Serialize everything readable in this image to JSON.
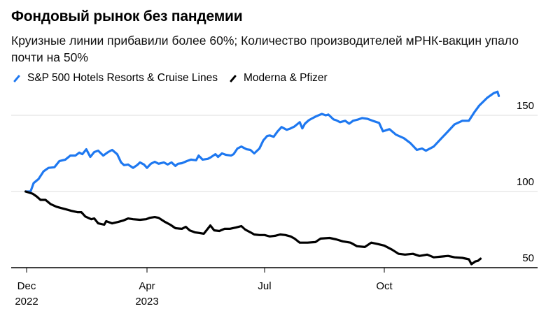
{
  "chart_data": {
    "type": "line",
    "title": "Фондовый рынок без пандемии",
    "subtitle": "Круизные линии прибавили более 60%; Количество производителей мРНК-вакцин упало почти на 50%",
    "xlabel": "",
    "ylabel": "",
    "ylim": [
      50,
      165
    ],
    "xlim": [
      "2022-11-28",
      "2024-01-12"
    ],
    "grid": true,
    "legend_position": "top-left",
    "y_ticks": [
      50,
      100,
      150
    ],
    "y_tick_labels": [
      "50",
      "100",
      "150"
    ],
    "x_ticks": [
      {
        "date": "2022-12-01",
        "label_line1": "Dec",
        "label_line2": "2022"
      },
      {
        "date": "2023-04-01",
        "label_line1": "Apr",
        "label_line2": "2023"
      },
      {
        "date": "2023-07-01",
        "label_line1": "Jul",
        "label_line2": ""
      },
      {
        "date": "2023-10-01",
        "label_line1": "Oct",
        "label_line2": ""
      }
    ],
    "series": [
      {
        "name": "S&P 500 Hotels Resorts & Cruise Lines",
        "color": "#1e78f0",
        "points": [
          [
            "2022-11-30",
            100.0
          ],
          [
            "2022-12-05",
            100.0
          ],
          [
            "2022-12-08",
            105.5
          ],
          [
            "2022-12-13",
            108.2
          ],
          [
            "2022-12-18",
            113.2
          ],
          [
            "2022-12-23",
            115.5
          ],
          [
            "2022-12-29",
            115.9
          ],
          [
            "2023-01-03",
            120.0
          ],
          [
            "2023-01-09",
            120.9
          ],
          [
            "2023-01-14",
            123.6
          ],
          [
            "2023-01-19",
            123.6
          ],
          [
            "2023-01-23",
            125.5
          ],
          [
            "2023-01-26",
            124.5
          ],
          [
            "2023-01-30",
            127.7
          ],
          [
            "2023-02-03",
            122.7
          ],
          [
            "2023-02-07",
            125.9
          ],
          [
            "2023-02-11",
            126.8
          ],
          [
            "2023-02-16",
            123.6
          ],
          [
            "2023-02-21",
            125.9
          ],
          [
            "2023-02-25",
            127.3
          ],
          [
            "2023-03-02",
            124.5
          ],
          [
            "2023-03-06",
            119.1
          ],
          [
            "2023-03-09",
            117.3
          ],
          [
            "2023-03-13",
            117.7
          ],
          [
            "2023-03-18",
            115.5
          ],
          [
            "2023-03-22",
            117.3
          ],
          [
            "2023-03-25",
            119.1
          ],
          [
            "2023-03-29",
            117.7
          ],
          [
            "2023-04-01",
            115.5
          ],
          [
            "2023-04-04",
            118.2
          ],
          [
            "2023-04-07",
            119.5
          ],
          [
            "2023-04-10",
            118.2
          ],
          [
            "2023-04-14",
            119.1
          ],
          [
            "2023-04-17",
            117.7
          ],
          [
            "2023-04-20",
            119.1
          ],
          [
            "2023-04-23",
            116.8
          ],
          [
            "2023-04-25",
            118.2
          ],
          [
            "2023-04-28",
            118.6
          ],
          [
            "2023-05-02",
            120.0
          ],
          [
            "2023-05-05",
            120.9
          ],
          [
            "2023-05-09",
            120.5
          ],
          [
            "2023-05-11",
            123.6
          ],
          [
            "2023-05-14",
            120.9
          ],
          [
            "2023-05-18",
            121.4
          ],
          [
            "2023-05-20",
            122.3
          ],
          [
            "2023-05-24",
            124.5
          ],
          [
            "2023-05-26",
            122.7
          ],
          [
            "2023-05-29",
            125.0
          ],
          [
            "2023-06-01",
            124.1
          ],
          [
            "2023-06-05",
            123.6
          ],
          [
            "2023-06-07",
            124.5
          ],
          [
            "2023-06-10",
            128.2
          ],
          [
            "2023-06-13",
            129.5
          ],
          [
            "2023-06-17",
            127.7
          ],
          [
            "2023-06-20",
            127.3
          ],
          [
            "2023-06-23",
            125.0
          ],
          [
            "2023-06-27",
            128.2
          ],
          [
            "2023-06-30",
            133.6
          ],
          [
            "2023-07-03",
            136.4
          ],
          [
            "2023-07-05",
            136.8
          ],
          [
            "2023-07-08",
            135.9
          ],
          [
            "2023-07-11",
            139.5
          ],
          [
            "2023-07-14",
            142.3
          ],
          [
            "2023-07-18",
            140.5
          ],
          [
            "2023-07-21",
            141.4
          ],
          [
            "2023-07-24",
            142.7
          ],
          [
            "2023-07-28",
            145.5
          ],
          [
            "2023-07-30",
            141.4
          ],
          [
            "2023-08-01",
            144.5
          ],
          [
            "2023-08-04",
            146.8
          ],
          [
            "2023-08-07",
            148.2
          ],
          [
            "2023-08-10",
            149.5
          ],
          [
            "2023-08-14",
            150.9
          ],
          [
            "2023-08-17",
            150.0
          ],
          [
            "2023-08-19",
            150.5
          ],
          [
            "2023-08-23",
            147.3
          ],
          [
            "2023-08-25",
            146.8
          ],
          [
            "2023-08-28",
            145.5
          ],
          [
            "2023-09-01",
            146.4
          ],
          [
            "2023-09-04",
            144.5
          ],
          [
            "2023-09-07",
            146.4
          ],
          [
            "2023-09-11",
            147.3
          ],
          [
            "2023-09-14",
            148.2
          ],
          [
            "2023-09-18",
            147.7
          ],
          [
            "2023-09-22",
            146.4
          ],
          [
            "2023-09-27",
            145.0
          ],
          [
            "2023-09-30",
            139.5
          ],
          [
            "2023-10-05",
            140.9
          ],
          [
            "2023-10-10",
            137.3
          ],
          [
            "2023-10-16",
            135.0
          ],
          [
            "2023-10-21",
            131.8
          ],
          [
            "2023-10-26",
            127.3
          ],
          [
            "2023-10-30",
            128.2
          ],
          [
            "2023-11-02",
            126.8
          ],
          [
            "2023-11-08",
            129.5
          ],
          [
            "2023-11-13",
            134.1
          ],
          [
            "2023-11-19",
            139.5
          ],
          [
            "2023-11-24",
            144.1
          ],
          [
            "2023-11-30",
            146.4
          ],
          [
            "2023-12-05",
            146.4
          ],
          [
            "2023-12-09",
            151.8
          ],
          [
            "2023-12-13",
            156.4
          ],
          [
            "2023-12-19",
            161.4
          ],
          [
            "2023-12-24",
            164.5
          ],
          [
            "2023-12-27",
            165.5
          ],
          [
            "2023-12-28",
            162.7
          ]
        ]
      },
      {
        "name": "Moderna & Pfizer",
        "color": "#000000",
        "points": [
          [
            "2022-11-30",
            100.0
          ],
          [
            "2022-12-07",
            98.6
          ],
          [
            "2022-12-11",
            96.8
          ],
          [
            "2022-12-15",
            94.5
          ],
          [
            "2022-12-20",
            94.5
          ],
          [
            "2022-12-25",
            91.8
          ],
          [
            "2022-12-31",
            90.0
          ],
          [
            "2023-01-05",
            89.1
          ],
          [
            "2023-01-10",
            88.2
          ],
          [
            "2023-01-15",
            87.3
          ],
          [
            "2023-01-21",
            86.4
          ],
          [
            "2023-01-25",
            86.4
          ],
          [
            "2023-01-29",
            83.6
          ],
          [
            "2023-02-04",
            81.8
          ],
          [
            "2023-02-07",
            82.3
          ],
          [
            "2023-02-11",
            79.1
          ],
          [
            "2023-02-17",
            78.2
          ],
          [
            "2023-02-19",
            80.5
          ],
          [
            "2023-02-25",
            79.1
          ],
          [
            "2023-03-03",
            80.0
          ],
          [
            "2023-03-08",
            80.9
          ],
          [
            "2023-03-13",
            82.3
          ],
          [
            "2023-03-18",
            81.8
          ],
          [
            "2023-03-25",
            81.4
          ],
          [
            "2023-03-31",
            81.8
          ],
          [
            "2023-04-03",
            82.7
          ],
          [
            "2023-04-07",
            83.2
          ],
          [
            "2023-04-10",
            82.7
          ],
          [
            "2023-04-15",
            80.0
          ],
          [
            "2023-04-19",
            78.2
          ],
          [
            "2023-04-23",
            75.9
          ],
          [
            "2023-04-28",
            75.5
          ],
          [
            "2023-05-01",
            76.8
          ],
          [
            "2023-05-04",
            74.5
          ],
          [
            "2023-05-08",
            73.2
          ],
          [
            "2023-05-12",
            72.7
          ],
          [
            "2023-05-15",
            72.3
          ],
          [
            "2023-05-20",
            77.7
          ],
          [
            "2023-05-23",
            74.5
          ],
          [
            "2023-05-27",
            74.1
          ],
          [
            "2023-05-31",
            75.5
          ],
          [
            "2023-06-04",
            75.5
          ],
          [
            "2023-06-09",
            76.4
          ],
          [
            "2023-06-13",
            77.3
          ],
          [
            "2023-06-16",
            75.0
          ],
          [
            "2023-06-20",
            73.2
          ],
          [
            "2023-06-23",
            71.8
          ],
          [
            "2023-06-27",
            71.4
          ],
          [
            "2023-07-01",
            71.4
          ],
          [
            "2023-07-05",
            70.5
          ],
          [
            "2023-07-09",
            70.9
          ],
          [
            "2023-07-13",
            71.8
          ],
          [
            "2023-07-17",
            71.4
          ],
          [
            "2023-07-21",
            70.5
          ],
          [
            "2023-07-24",
            69.1
          ],
          [
            "2023-07-28",
            66.4
          ],
          [
            "2023-08-03",
            66.4
          ],
          [
            "2023-08-09",
            66.8
          ],
          [
            "2023-08-13",
            69.1
          ],
          [
            "2023-08-20",
            69.5
          ],
          [
            "2023-08-25",
            68.6
          ],
          [
            "2023-08-30",
            67.3
          ],
          [
            "2023-09-05",
            66.4
          ],
          [
            "2023-09-10",
            64.1
          ],
          [
            "2023-09-16",
            63.6
          ],
          [
            "2023-09-21",
            66.4
          ],
          [
            "2023-09-26",
            65.5
          ],
          [
            "2023-10-01",
            64.5
          ],
          [
            "2023-10-07",
            61.8
          ],
          [
            "2023-10-12",
            59.1
          ],
          [
            "2023-10-17",
            58.6
          ],
          [
            "2023-10-23",
            59.1
          ],
          [
            "2023-10-28",
            57.7
          ],
          [
            "2023-11-03",
            58.6
          ],
          [
            "2023-11-08",
            56.8
          ],
          [
            "2023-11-14",
            57.3
          ],
          [
            "2023-11-19",
            57.7
          ],
          [
            "2023-11-24",
            56.8
          ],
          [
            "2023-11-30",
            56.4
          ],
          [
            "2023-12-05",
            55.5
          ],
          [
            "2023-12-07",
            52.3
          ],
          [
            "2023-12-10",
            54.1
          ],
          [
            "2023-12-12",
            54.5
          ],
          [
            "2023-12-14",
            55.9
          ]
        ]
      }
    ]
  }
}
